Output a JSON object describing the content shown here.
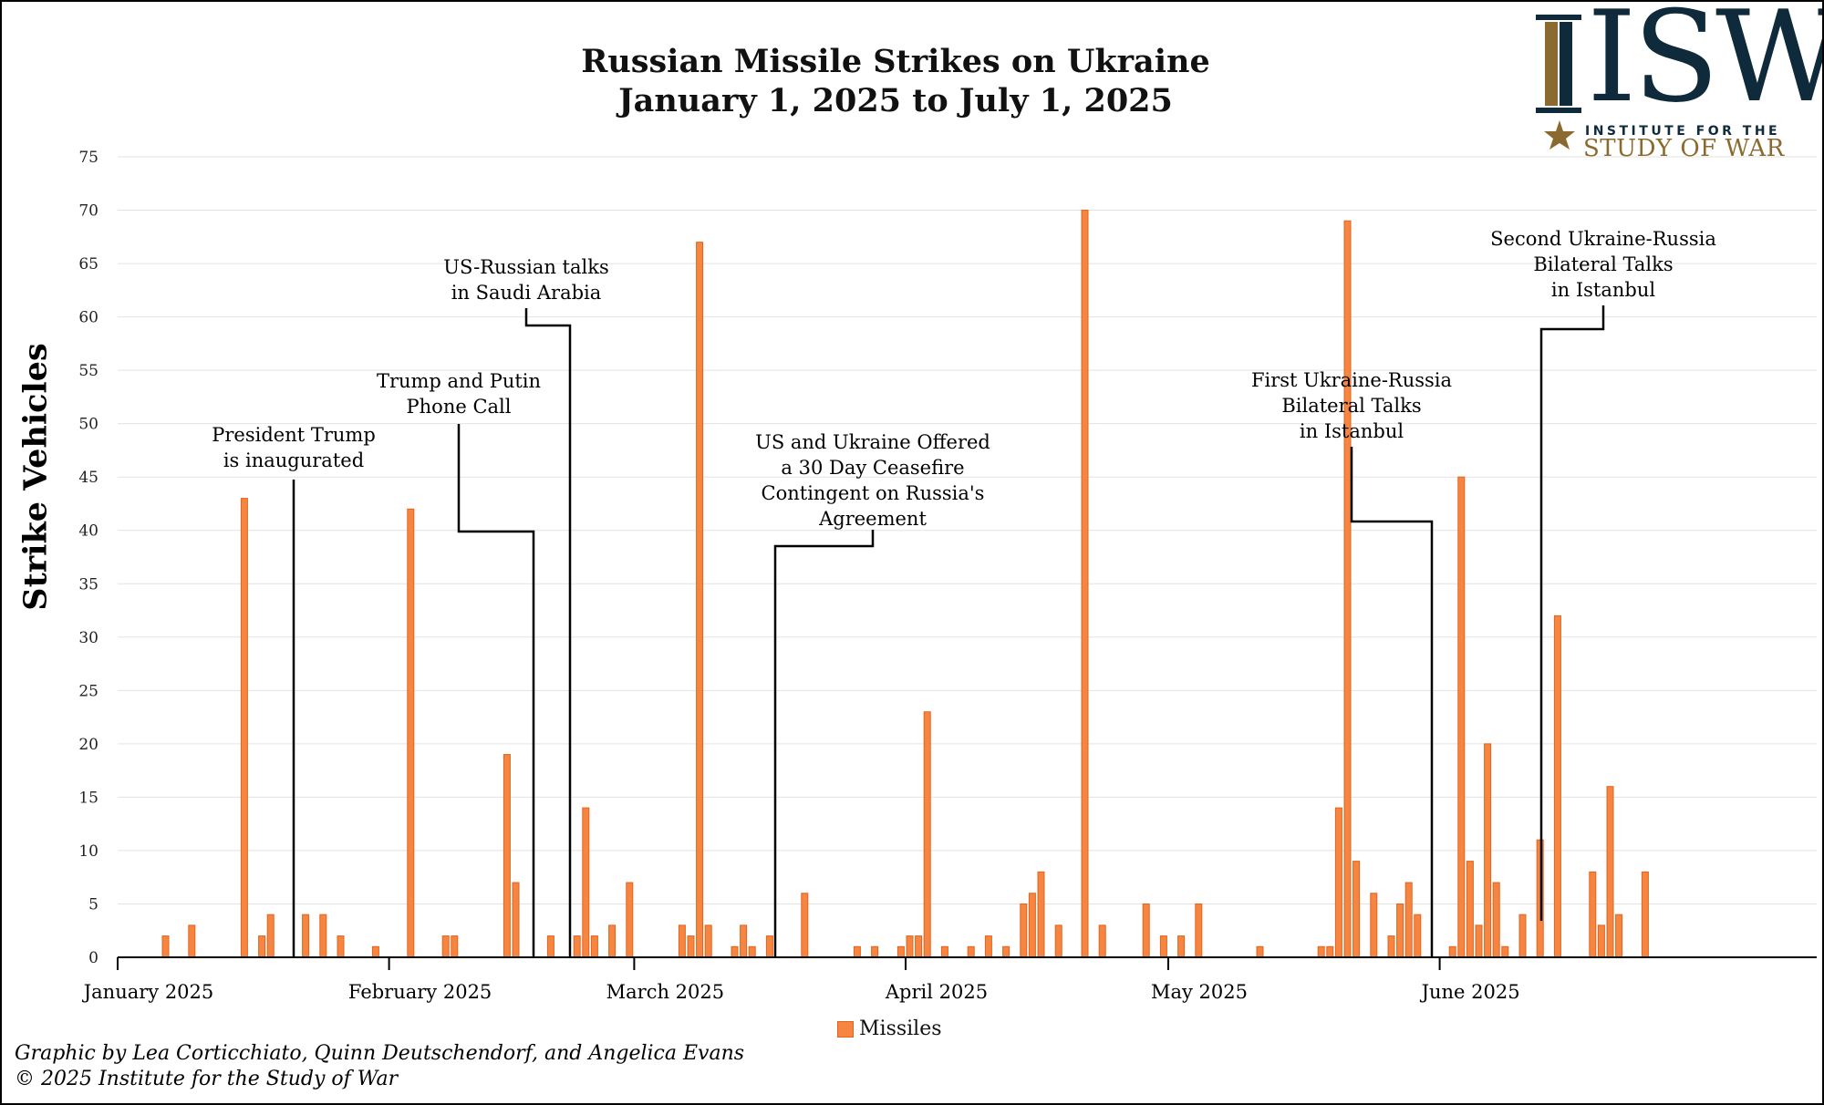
{
  "title_line1": "Russian Missile Strikes on Ukraine",
  "title_line2": "January 1, 2025 to July 1, 2025",
  "logo": {
    "letters": "ISW",
    "line1": "INSTITUTE FOR THE",
    "line2": "STUDY OF WAR",
    "navy": "#0e2a3b",
    "gold": "#8a6a2e"
  },
  "credits": {
    "line1": "Graphic by Lea Corticchiato, Quinn Deutschendorf, and Angelica Evans",
    "line2": "© 2025 Institute for the Study of War"
  },
  "chart_data": {
    "type": "bar",
    "title": "Russian Missile Strikes on Ukraine January 1, 2025 to July 1, 2025",
    "xlabel": "",
    "ylabel": "Strike Vehicles",
    "ylim": [
      0,
      75
    ],
    "y_ticks": [
      0,
      5,
      10,
      15,
      20,
      25,
      30,
      35,
      40,
      45,
      50,
      55,
      60,
      65,
      70,
      75
    ],
    "x_tick_labels": [
      {
        "label": "January 2025",
        "date": "2025-01-01"
      },
      {
        "label": "February 2025",
        "date": "2025-02-01"
      },
      {
        "label": "March 2025",
        "date": "2025-03-01"
      },
      {
        "label": "April 2025",
        "date": "2025-04-01"
      },
      {
        "label": "May 2025",
        "date": "2025-05-01"
      },
      {
        "label": "June 2025",
        "date": "2025-06-01"
      }
    ],
    "grid": true,
    "legend_position": "bottom-center",
    "bar_color": "#f58540",
    "bar_edge_color": "#e0641f",
    "series": [
      {
        "name": "Missiles",
        "points": [
          {
            "date": "2025-01-06",
            "value": 2
          },
          {
            "date": "2025-01-09",
            "value": 3
          },
          {
            "date": "2025-01-15",
            "value": 43
          },
          {
            "date": "2025-01-17",
            "value": 2
          },
          {
            "date": "2025-01-18",
            "value": 4
          },
          {
            "date": "2025-01-22",
            "value": 4
          },
          {
            "date": "2025-01-24",
            "value": 4
          },
          {
            "date": "2025-01-26",
            "value": 2
          },
          {
            "date": "2025-01-30",
            "value": 1
          },
          {
            "date": "2025-02-03",
            "value": 42
          },
          {
            "date": "2025-02-07",
            "value": 2
          },
          {
            "date": "2025-02-08",
            "value": 2
          },
          {
            "date": "2025-02-14",
            "value": 19
          },
          {
            "date": "2025-02-15",
            "value": 7
          },
          {
            "date": "2025-02-19",
            "value": 2
          },
          {
            "date": "2025-02-22",
            "value": 2
          },
          {
            "date": "2025-02-23",
            "value": 14
          },
          {
            "date": "2025-02-24",
            "value": 2
          },
          {
            "date": "2025-02-26",
            "value": 3
          },
          {
            "date": "2025-02-28",
            "value": 7
          },
          {
            "date": "2025-03-06",
            "value": 3
          },
          {
            "date": "2025-03-07",
            "value": 2
          },
          {
            "date": "2025-03-08",
            "value": 67
          },
          {
            "date": "2025-03-09",
            "value": 3
          },
          {
            "date": "2025-03-12",
            "value": 1
          },
          {
            "date": "2025-03-13",
            "value": 3
          },
          {
            "date": "2025-03-14",
            "value": 1
          },
          {
            "date": "2025-03-16",
            "value": 2
          },
          {
            "date": "2025-03-20",
            "value": 6
          },
          {
            "date": "2025-03-26",
            "value": 1
          },
          {
            "date": "2025-03-28",
            "value": 1
          },
          {
            "date": "2025-03-31",
            "value": 1
          },
          {
            "date": "2025-04-01",
            "value": 2
          },
          {
            "date": "2025-04-02",
            "value": 2
          },
          {
            "date": "2025-04-03",
            "value": 23
          },
          {
            "date": "2025-04-05",
            "value": 1
          },
          {
            "date": "2025-04-08",
            "value": 1
          },
          {
            "date": "2025-04-10",
            "value": 2
          },
          {
            "date": "2025-04-12",
            "value": 1
          },
          {
            "date": "2025-04-14",
            "value": 5
          },
          {
            "date": "2025-04-15",
            "value": 6
          },
          {
            "date": "2025-04-16",
            "value": 8
          },
          {
            "date": "2025-04-18",
            "value": 3
          },
          {
            "date": "2025-04-21",
            "value": 70
          },
          {
            "date": "2025-04-23",
            "value": 3
          },
          {
            "date": "2025-04-28",
            "value": 5
          },
          {
            "date": "2025-04-30",
            "value": 2
          },
          {
            "date": "2025-05-02",
            "value": 2
          },
          {
            "date": "2025-05-04",
            "value": 5
          },
          {
            "date": "2025-05-11",
            "value": 1
          },
          {
            "date": "2025-05-18",
            "value": 1
          },
          {
            "date": "2025-05-19",
            "value": 1
          },
          {
            "date": "2025-05-20",
            "value": 14
          },
          {
            "date": "2025-05-21",
            "value": 69
          },
          {
            "date": "2025-05-22",
            "value": 9
          },
          {
            "date": "2025-05-24",
            "value": 6
          },
          {
            "date": "2025-05-26",
            "value": 2
          },
          {
            "date": "2025-05-27",
            "value": 5
          },
          {
            "date": "2025-05-28",
            "value": 7
          },
          {
            "date": "2025-05-29",
            "value": 4
          },
          {
            "date": "2025-06-02",
            "value": 1
          },
          {
            "date": "2025-06-03",
            "value": 45
          },
          {
            "date": "2025-06-04",
            "value": 9
          },
          {
            "date": "2025-06-05",
            "value": 3
          },
          {
            "date": "2025-06-06",
            "value": 20
          },
          {
            "date": "2025-06-07",
            "value": 7
          },
          {
            "date": "2025-06-08",
            "value": 1
          },
          {
            "date": "2025-06-10",
            "value": 4
          },
          {
            "date": "2025-06-12",
            "value": 11
          },
          {
            "date": "2025-06-14",
            "value": 32
          },
          {
            "date": "2025-06-18",
            "value": 8
          },
          {
            "date": "2025-06-19",
            "value": 3
          },
          {
            "date": "2025-06-20",
            "value": 16
          },
          {
            "date": "2025-06-21",
            "value": 4
          },
          {
            "date": "2025-06-24",
            "value": 8
          }
        ]
      }
    ],
    "annotations": [
      {
        "lines": [
          "President Trump",
          "is inaugurated"
        ],
        "date": "2025-01-20"
      },
      {
        "lines": [
          "Trump and Putin",
          "Phone Call"
        ],
        "date": "2025-02-12"
      },
      {
        "lines": [
          "US-Russian talks",
          "in Saudi Arabia"
        ],
        "date": "2025-02-18"
      },
      {
        "lines": [
          "US and Ukraine Offered",
          "a 30 Day Ceasefire",
          "Contingent on Russia's",
          "Agreement"
        ],
        "date": "2025-03-11"
      },
      {
        "lines": [
          "First Ukraine-Russia",
          "Bilateral Talks",
          "in Istanbul"
        ],
        "date": "2025-05-16"
      },
      {
        "lines": [
          "Second Ukraine-Russia",
          "Bilateral Talks",
          "in Istanbul"
        ],
        "date": "2025-06-02"
      }
    ]
  }
}
